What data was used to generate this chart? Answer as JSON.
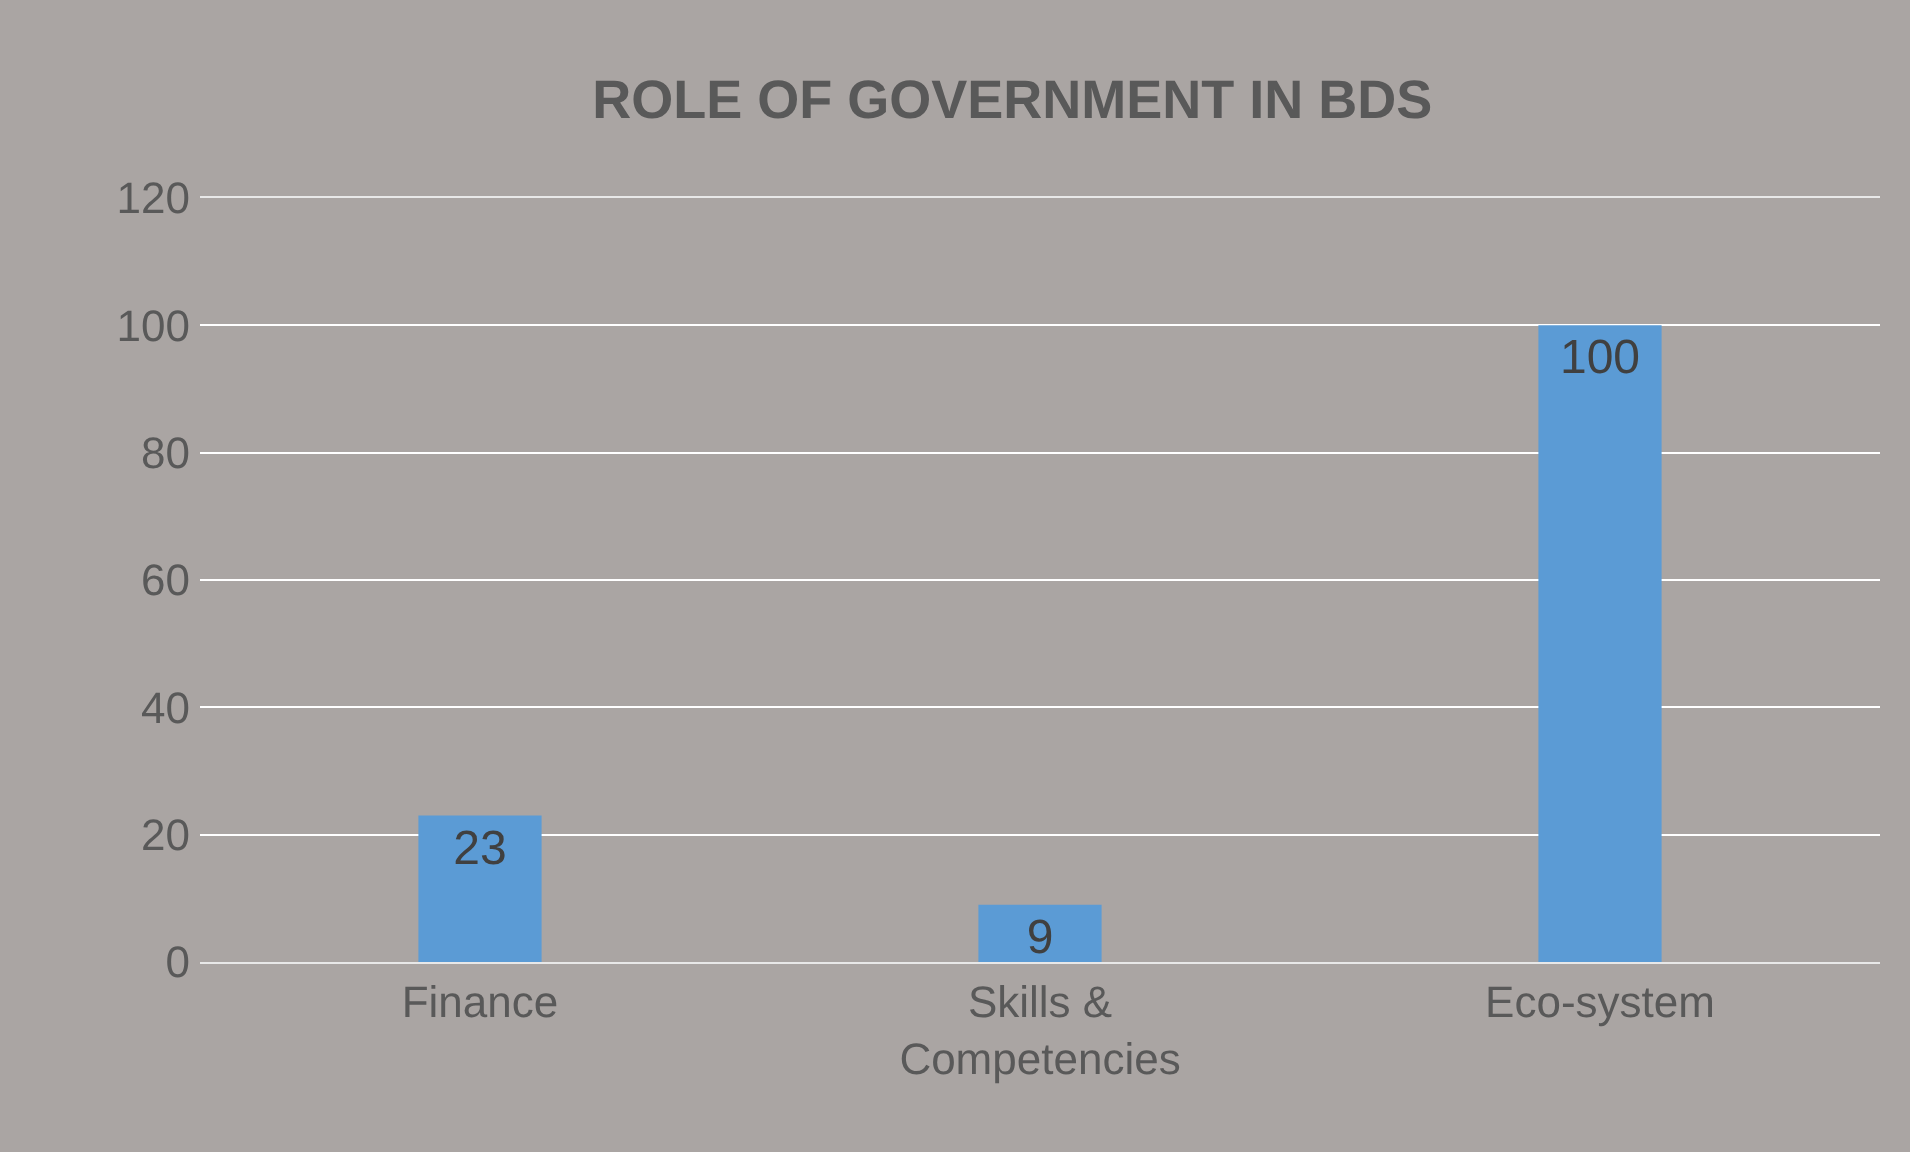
{
  "chart_data": {
    "type": "bar",
    "title": "ROLE OF GOVERNMENT IN BDS",
    "categories": [
      "Finance",
      "Skills & Competencies",
      "Eco-system"
    ],
    "values": [
      23,
      9,
      100
    ],
    "color": "#5b9bd5",
    "data_labels": true,
    "ylim": [
      0,
      120
    ],
    "yticks": [
      0,
      20,
      40,
      60,
      80,
      100,
      120
    ],
    "grid": "y"
  }
}
